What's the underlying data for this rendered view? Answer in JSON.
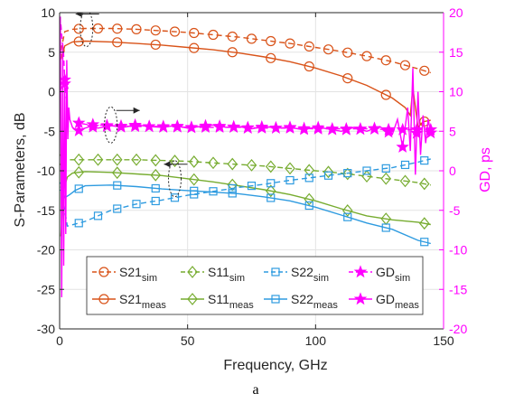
{
  "chart_data": {
    "type": "line",
    "title": "",
    "xlabel": "Frequency, GHz",
    "ylabel": "S-Parameters, dB",
    "y2label": "GD, ps",
    "xlim": [
      0,
      150
    ],
    "ylim": [
      -30,
      10
    ],
    "y2lim": [
      -20,
      20
    ],
    "xticks": [
      "0",
      "50",
      "100",
      "150"
    ],
    "yticks": [
      "-30",
      "-25",
      "-20",
      "-15",
      "-10",
      "-5",
      "0",
      "5",
      "10"
    ],
    "y2ticks": [
      "-20",
      "-15",
      "-10",
      "-5",
      "0",
      "5",
      "10",
      "15",
      "20"
    ],
    "grid": true,
    "legend_position": "bottom-center",
    "caption": "a",
    "colors": {
      "s21": "#D95319",
      "s11": "#77AC30",
      "s22": "#2E9BE0",
      "gd": "#FF00FF",
      "axis": "#262626",
      "grid": "#e3e3e3"
    },
    "legend": [
      {
        "base": "S21",
        "sub": "sim",
        "series": "S21_sim"
      },
      {
        "base": "S11",
        "sub": "sim",
        "series": "S11_sim"
      },
      {
        "base": "S22",
        "sub": "sim",
        "series": "S22_sim"
      },
      {
        "base": "GD",
        "sub": "sim",
        "series": "GD_sim"
      },
      {
        "base": "S21",
        "sub": "meas",
        "series": "S21_meas"
      },
      {
        "base": "S11",
        "sub": "meas",
        "series": "S11_meas"
      },
      {
        "base": "S22",
        "sub": "meas",
        "series": "S22_meas"
      },
      {
        "base": "GD",
        "sub": "meas",
        "series": "GD_meas"
      }
    ],
    "series": [
      {
        "key": "S21_sim",
        "axis": "left",
        "color": "#D95319",
        "dash": true,
        "marker": "circle",
        "x": [
          0.5,
          2,
          5,
          10,
          20,
          30,
          40,
          50,
          60,
          70,
          80,
          90,
          100,
          110,
          120,
          130,
          140,
          145
        ],
        "y": [
          5.2,
          7.6,
          7.9,
          8.0,
          8.0,
          7.9,
          7.7,
          7.5,
          7.2,
          6.9,
          6.5,
          6.1,
          5.6,
          5.1,
          4.5,
          3.8,
          2.9,
          2.4
        ]
      },
      {
        "key": "S21_meas",
        "axis": "left",
        "color": "#D95319",
        "dash": false,
        "marker": "circle",
        "x": [
          0.5,
          2,
          5,
          10,
          20,
          30,
          40,
          50,
          60,
          70,
          80,
          90,
          100,
          110,
          120,
          130,
          135,
          137,
          138,
          140,
          142,
          145
        ],
        "y": [
          4.1,
          5.8,
          6.3,
          6.4,
          6.3,
          6.1,
          5.9,
          5.6,
          5.3,
          4.9,
          4.4,
          3.8,
          3.0,
          2.0,
          0.8,
          -0.8,
          -2.0,
          -3.0,
          0.5,
          -4.5,
          -3.8,
          -3.6
        ]
      },
      {
        "key": "S11_sim",
        "axis": "left",
        "color": "#77AC30",
        "dash": true,
        "marker": "diamond",
        "x": [
          0.5,
          2,
          10,
          20,
          30,
          40,
          50,
          60,
          70,
          80,
          90,
          100,
          110,
          120,
          130,
          140,
          145
        ],
        "y": [
          -8.6,
          -8.6,
          -8.6,
          -8.6,
          -8.6,
          -8.7,
          -8.8,
          -9.0,
          -9.2,
          -9.4,
          -9.7,
          -10.0,
          -10.3,
          -10.7,
          -11.1,
          -11.5,
          -11.8
        ]
      },
      {
        "key": "S11_meas",
        "axis": "left",
        "color": "#77AC30",
        "dash": false,
        "marker": "diamond",
        "x": [
          0.5,
          1.5,
          3,
          5,
          10,
          20,
          30,
          40,
          50,
          60,
          70,
          80,
          90,
          100,
          110,
          120,
          130,
          140,
          145
        ],
        "y": [
          -18.3,
          -12.5,
          -10.8,
          -10.3,
          -10.1,
          -10.2,
          -10.4,
          -10.6,
          -11.0,
          -11.4,
          -11.9,
          -12.4,
          -13.0,
          -13.8,
          -14.8,
          -15.7,
          -16.2,
          -16.5,
          -16.8
        ]
      },
      {
        "key": "S22_sim",
        "axis": "left",
        "color": "#2E9BE0",
        "dash": true,
        "marker": "square",
        "x": [
          0.5,
          1.5,
          3,
          10,
          20,
          30,
          40,
          50,
          60,
          70,
          80,
          90,
          100,
          110,
          120,
          130,
          140,
          145
        ],
        "y": [
          -12.0,
          -14.0,
          -17.0,
          -16.4,
          -15.0,
          -14.2,
          -13.7,
          -13.1,
          -12.6,
          -12.1,
          -11.7,
          -11.2,
          -10.8,
          -10.4,
          -10.0,
          -9.6,
          -8.9,
          -8.5
        ]
      },
      {
        "key": "S22_meas",
        "axis": "left",
        "color": "#2E9BE0",
        "dash": false,
        "marker": "square",
        "x": [
          0.5,
          2,
          4,
          6,
          8,
          10,
          20,
          30,
          40,
          50,
          60,
          70,
          80,
          90,
          100,
          110,
          120,
          130,
          140,
          145
        ],
        "y": [
          -11.6,
          -13.4,
          -13.0,
          -12.5,
          -12.2,
          -11.9,
          -11.8,
          -12.0,
          -12.3,
          -12.5,
          -12.7,
          -12.9,
          -13.3,
          -13.8,
          -14.6,
          -15.6,
          -16.6,
          -17.4,
          -18.8,
          -19.2
        ]
      },
      {
        "key": "GD_sim",
        "axis": "right",
        "color": "#FF00FF",
        "dash": true,
        "marker": "star",
        "x": [
          0.5,
          1,
          1.5,
          2,
          3,
          4,
          6,
          8,
          10,
          15,
          20,
          30,
          40,
          50,
          60,
          70,
          80,
          90,
          100,
          110,
          120,
          130,
          140,
          145
        ],
        "y": [
          18.5,
          16.5,
          15.0,
          11.5,
          8.0,
          6.5,
          6.2,
          6.0,
          5.9,
          5.8,
          5.7,
          5.6,
          5.6,
          5.5,
          5.5,
          5.5,
          5.4,
          5.4,
          5.3,
          5.3,
          5.3,
          5.2,
          5.2,
          5.2
        ]
      },
      {
        "key": "GD_meas",
        "axis": "right",
        "color": "#FF00FF",
        "dash": false,
        "marker": "star",
        "x": [
          0.3,
          0.8,
          1.2,
          1.6,
          2.0,
          2.4,
          2.8,
          3.2,
          3.6,
          4.0,
          5,
          7,
          9,
          12,
          15,
          20,
          25,
          30,
          35,
          40,
          45,
          50,
          55,
          60,
          65,
          70,
          75,
          80,
          85,
          90,
          95,
          100,
          105,
          110,
          115,
          120,
          125,
          130,
          132,
          134,
          136,
          137,
          138,
          139,
          140,
          141,
          142,
          143,
          144,
          145
        ],
        "y": [
          19.5,
          -16.0,
          16.0,
          -12.0,
          11.0,
          -8.0,
          14.0,
          4.0,
          8.0,
          6.5,
          5.5,
          5.0,
          5.3,
          5.6,
          5.4,
          5.7,
          5.5,
          5.8,
          5.6,
          5.5,
          5.7,
          5.4,
          5.6,
          5.8,
          5.5,
          5.6,
          5.3,
          5.6,
          5.4,
          5.5,
          5.2,
          5.5,
          5.3,
          5.0,
          5.5,
          5.0,
          5.6,
          4.6,
          6.5,
          3.0,
          8.0,
          2.5,
          13.0,
          -0.5,
          10.0,
          2.0,
          7.0,
          3.5,
          6.5,
          4.8
        ]
      }
    ],
    "annotations": [
      {
        "type": "ellipse-arrow",
        "cx_data": 10.5,
        "cy_data": 8.0,
        "axis": "left",
        "direction": "left"
      },
      {
        "type": "ellipse-arrow",
        "cx_data": 20,
        "cy_data": 5.8,
        "axis": "right",
        "direction": "right"
      },
      {
        "type": "ellipse-arrow",
        "cx_data": 45,
        "cy_data": -11.0,
        "axis": "left",
        "direction": "left"
      }
    ]
  }
}
